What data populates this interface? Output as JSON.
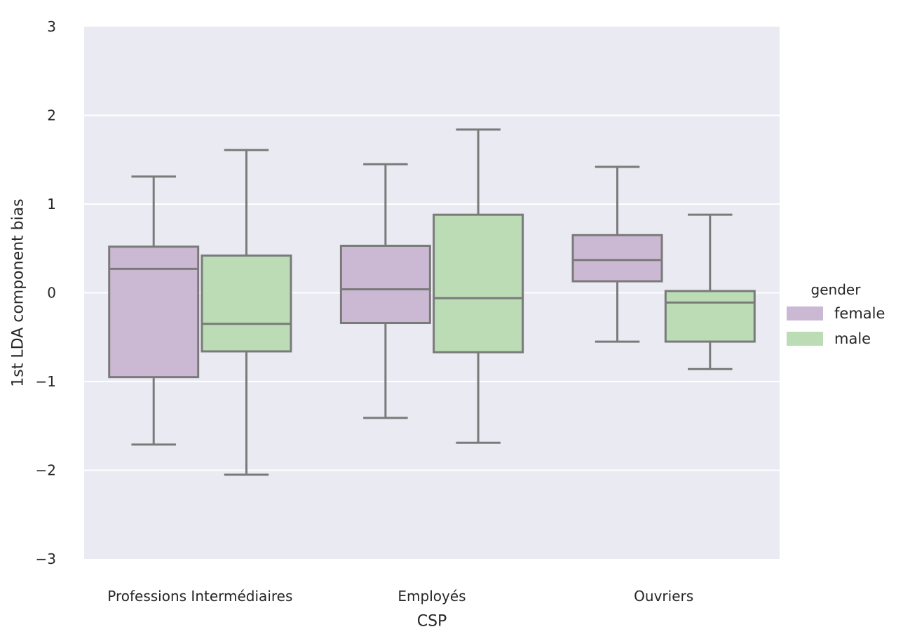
{
  "chart_data": {
    "type": "box",
    "title": "",
    "xlabel": "CSP",
    "ylabel": "1st LDA component bias",
    "ylim": [
      -3,
      3
    ],
    "yticks": [
      -3,
      -2,
      -1,
      0,
      1,
      2,
      3
    ],
    "ytick_labels": [
      "−3",
      "−2",
      "−1",
      "0",
      "1",
      "2",
      "3"
    ],
    "categories": [
      "Professions Intermédiaires",
      "Employés",
      "Ouvriers"
    ],
    "grid": "horizontal",
    "legend": {
      "title": "gender",
      "placement": "right"
    },
    "colors": {
      "background": "#eaeaf2",
      "grid": "#ffffff",
      "edge": "#7a7a7a"
    },
    "series": [
      {
        "name": "female",
        "color": "#cbb8d3",
        "boxes": [
          {
            "whislo": -1.71,
            "q1": -0.95,
            "med": 0.27,
            "q3": 0.52,
            "whishi": 1.31
          },
          {
            "whislo": -1.41,
            "q1": -0.34,
            "med": 0.04,
            "q3": 0.53,
            "whishi": 1.45
          },
          {
            "whislo": -0.55,
            "q1": 0.13,
            "med": 0.37,
            "q3": 0.65,
            "whishi": 1.42
          }
        ]
      },
      {
        "name": "male",
        "color": "#bcdcb6",
        "boxes": [
          {
            "whislo": -2.05,
            "q1": -0.66,
            "med": -0.35,
            "q3": 0.42,
            "whishi": 1.61
          },
          {
            "whislo": -1.69,
            "q1": -0.67,
            "med": -0.06,
            "q3": 0.88,
            "whishi": 1.84
          },
          {
            "whislo": -0.86,
            "q1": -0.55,
            "med": -0.11,
            "q3": 0.02,
            "whishi": 0.88
          }
        ]
      }
    ]
  }
}
